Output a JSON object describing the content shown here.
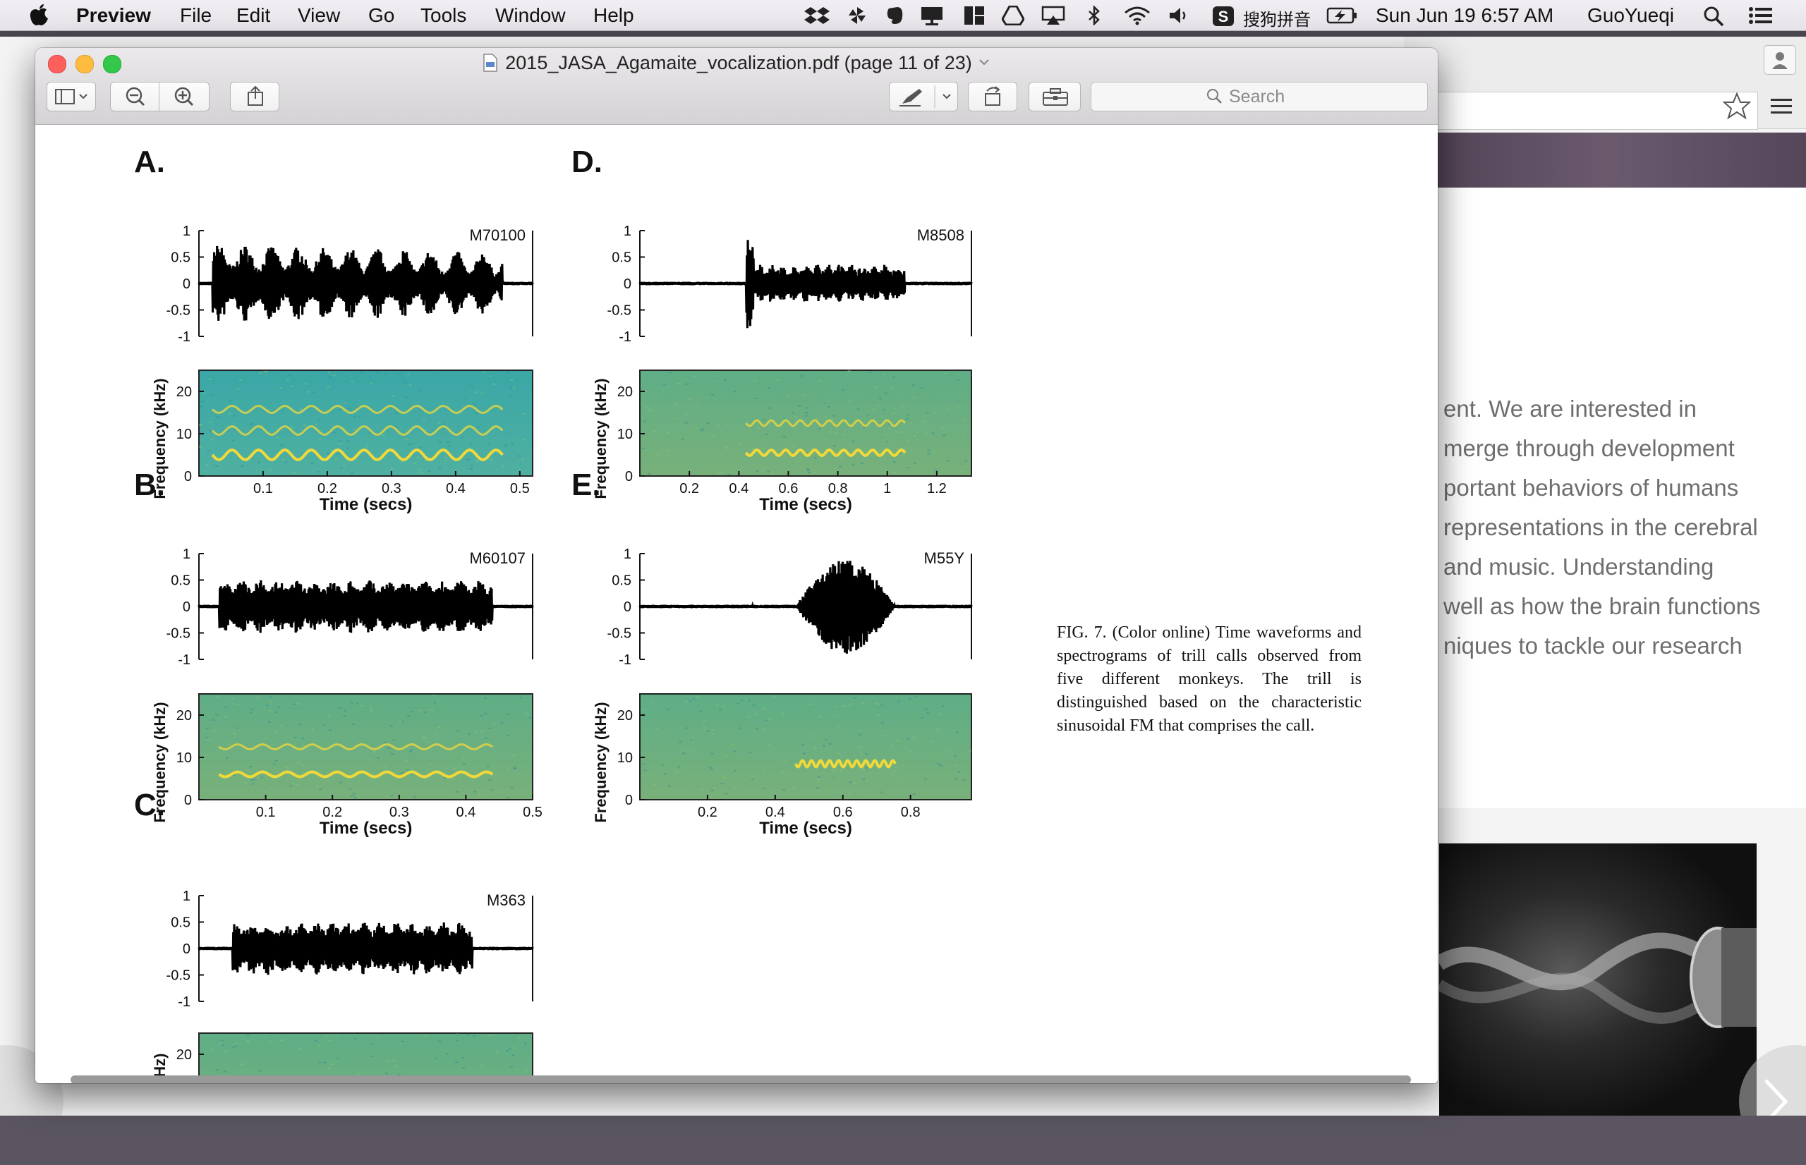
{
  "menubar": {
    "app": "Preview",
    "menus": [
      "File",
      "Edit",
      "View",
      "Go",
      "Tools",
      "Window",
      "Help"
    ],
    "input_method": "搜狗拼音",
    "clock": "Sun Jun 19  6:57 AM",
    "user": "GuoYueqi"
  },
  "window": {
    "title": "2015_JASA_Agamaite_vocalization.pdf (page 11 of 23)",
    "search_placeholder": "Search"
  },
  "figure": {
    "panels": [
      {
        "letter": "A.",
        "id": "M70100",
        "xticks": [
          "0.1",
          "0.2",
          "0.3",
          "0.4",
          "0.5"
        ],
        "xlabel": "Time (secs)"
      },
      {
        "letter": "B.",
        "id": "M60107",
        "xticks": [
          "0.1",
          "0.2",
          "0.3",
          "0.4",
          "0.5"
        ],
        "xlabel": "Time (secs)"
      },
      {
        "letter": "C.",
        "id": "M363",
        "xticks": [],
        "xlabel": ""
      },
      {
        "letter": "D.",
        "id": "M8508",
        "xticks": [
          "0.2",
          "0.4",
          "0.6",
          "0.8",
          "1",
          "1.2"
        ],
        "xlabel": "Time (secs)"
      },
      {
        "letter": "E.",
        "id": "M55Y",
        "xticks": [
          "0.2",
          "0.4",
          "0.6",
          "0.8"
        ],
        "xlabel": "Time (secs)"
      }
    ],
    "wave_yticks": [
      "1",
      "0.5",
      "0",
      "-0.5",
      "-1"
    ],
    "spec_yticks": [
      "20",
      "10",
      "0"
    ],
    "spec_ylabel": "Frequency (kHz)",
    "spec_ylabel_cropped": "quency (kHz)",
    "caption": "FIG. 7. (Color online) Time waveforms and spectrograms of trill calls observed from five different monkeys. The trill is distinguished based on the characteristic sinusoidal FM that comprises the call."
  },
  "background_page": {
    "lines": [
      "ent. We are interested in",
      "merge through development",
      "portant behaviors of humans",
      "representations in the cerebral",
      "and music. Understanding",
      "well as how the brain functions",
      "niques to tackle our research"
    ]
  },
  "colors": {
    "spectrogram_teal": "#3aa7a7",
    "spectrogram_green": "#5fae86",
    "trill_yellow": "#f2d93a",
    "close": "#fc605c",
    "minimize": "#fdbc40",
    "zoom": "#34c84a"
  }
}
